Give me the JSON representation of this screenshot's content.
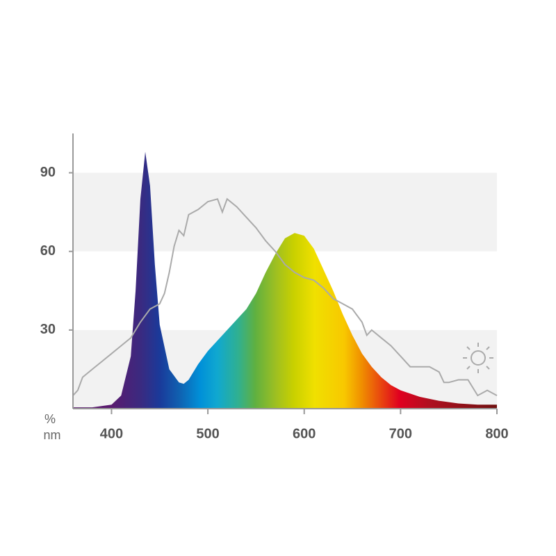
{
  "chart_data": {
    "type": "spectrum",
    "x_unit_label": "nm",
    "y_unit_label": "%",
    "xlim": [
      360,
      800
    ],
    "xticks": [
      400,
      500,
      600,
      700,
      800
    ],
    "ylim": [
      0,
      105
    ],
    "yticks": [
      30,
      60,
      90
    ],
    "band_color": "#f2f2f2",
    "axis_color": "#999999",
    "series": [
      {
        "fill": "spectrum",
        "x": [
          360,
          380,
          400,
          410,
          420,
          425,
          430,
          435,
          440,
          445,
          450,
          460,
          470,
          475,
          480,
          490,
          500,
          510,
          520,
          530,
          540,
          550,
          560,
          570,
          580,
          590,
          600,
          610,
          620,
          630,
          640,
          650,
          660,
          670,
          680,
          690,
          700,
          720,
          740,
          760,
          780,
          800
        ],
        "values": [
          0.5,
          0.5,
          1.5,
          5,
          20,
          45,
          80,
          98,
          85,
          55,
          32,
          15,
          10,
          9.5,
          11,
          17,
          22,
          26,
          30,
          34,
          38,
          44,
          52,
          59,
          65,
          67,
          66,
          61,
          53,
          45,
          36,
          28,
          21,
          16,
          12,
          9,
          7,
          4.5,
          3,
          2,
          1.5,
          1.5
        ]
      },
      {
        "color": "#aaaaaa",
        "x": [
          360,
          365,
          370,
          380,
          390,
          400,
          410,
          420,
          430,
          440,
          450,
          455,
          460,
          465,
          470,
          475,
          480,
          490,
          500,
          510,
          515,
          520,
          530,
          540,
          550,
          560,
          570,
          580,
          590,
          600,
          610,
          620,
          630,
          640,
          650,
          660,
          665,
          670,
          680,
          690,
          700,
          710,
          720,
          730,
          740,
          745,
          750,
          760,
          770,
          780,
          790,
          800
        ],
        "values": [
          5,
          7,
          12,
          15,
          18,
          21,
          24,
          27,
          33,
          38,
          40,
          44,
          52,
          62,
          68,
          66,
          74,
          76,
          79,
          80,
          75,
          80,
          77,
          73,
          69,
          64,
          60,
          55,
          52,
          50,
          49,
          46,
          42,
          40,
          38,
          33,
          28,
          30,
          27,
          24,
          20,
          16,
          16,
          16,
          14,
          10,
          10,
          11,
          11,
          5,
          7,
          5
        ]
      }
    ]
  }
}
